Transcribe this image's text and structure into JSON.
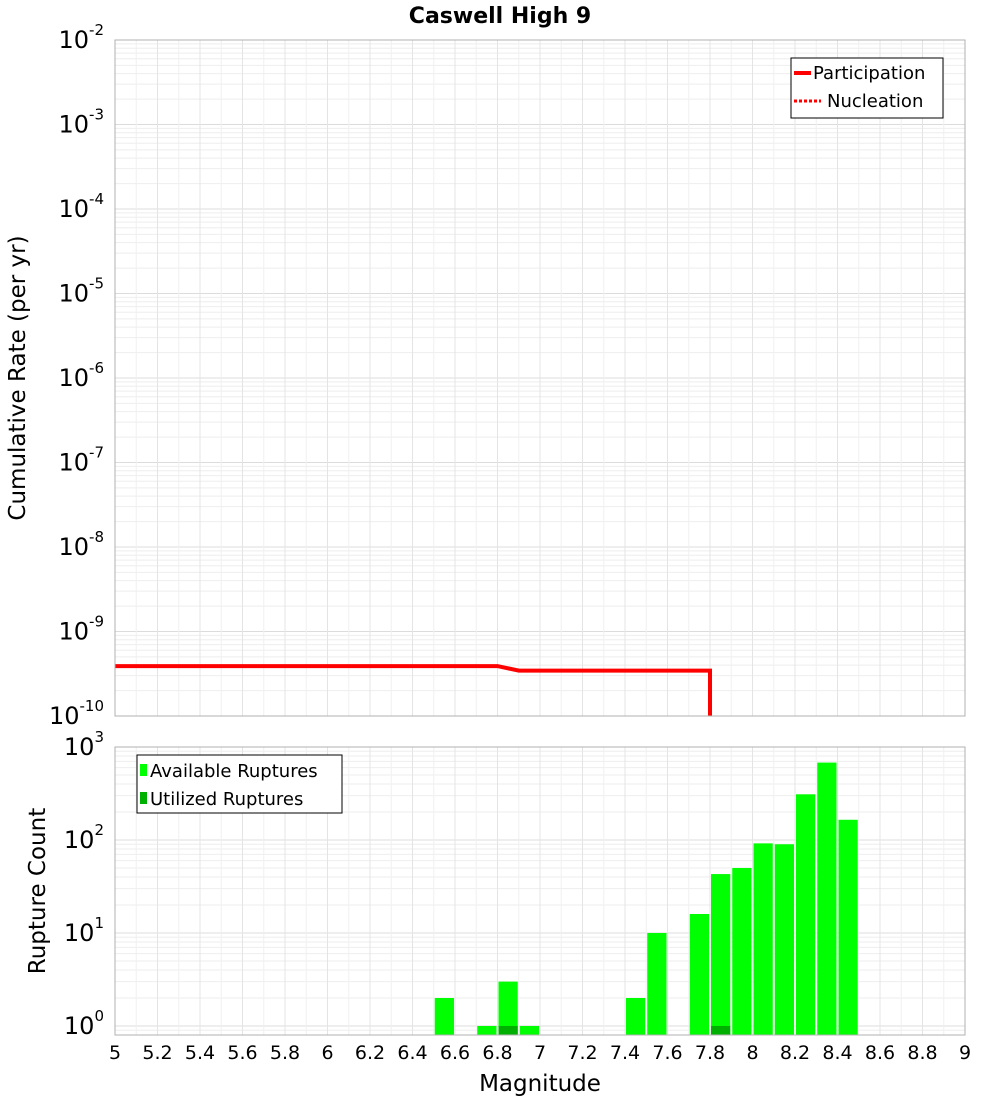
{
  "chart_data": [
    {
      "type": "line",
      "title": "Caswell High 9",
      "xlabel": "",
      "ylabel": "Cumulative Rate (per yr)",
      "yscale": "log",
      "xlim": [
        5,
        9
      ],
      "ylim": [
        1e-10,
        0.01
      ],
      "y_tick_labels": [
        {
          "base": "10",
          "exp": "-2"
        },
        {
          "base": "10",
          "exp": "-3"
        },
        {
          "base": "10",
          "exp": "-4"
        },
        {
          "base": "10",
          "exp": "-5"
        },
        {
          "base": "10",
          "exp": "-6"
        },
        {
          "base": "10",
          "exp": "-7"
        },
        {
          "base": "10",
          "exp": "-8"
        },
        {
          "base": "10",
          "exp": "-9"
        },
        {
          "base": "10",
          "exp": "-10"
        }
      ],
      "grid": true,
      "legend_position": "top-right",
      "series": [
        {
          "name": "Participation",
          "style": "solid",
          "color": "#ff0000",
          "x": [
            5.0,
            5.1,
            5.2,
            5.3,
            5.4,
            5.5,
            5.6,
            5.7,
            5.8,
            5.9,
            6.0,
            6.1,
            6.2,
            6.3,
            6.4,
            6.5,
            6.6,
            6.7,
            6.8,
            6.9,
            7.0,
            7.1,
            7.2,
            7.3,
            7.4,
            7.5,
            7.6,
            7.7,
            7.8,
            7.8
          ],
          "y": [
            3.9e-10,
            3.9e-10,
            3.9e-10,
            3.9e-10,
            3.9e-10,
            3.9e-10,
            3.9e-10,
            3.9e-10,
            3.9e-10,
            3.9e-10,
            3.9e-10,
            3.9e-10,
            3.9e-10,
            3.9e-10,
            3.9e-10,
            3.9e-10,
            3.9e-10,
            3.9e-10,
            3.9e-10,
            3.45e-10,
            3.45e-10,
            3.45e-10,
            3.45e-10,
            3.45e-10,
            3.45e-10,
            3.45e-10,
            3.45e-10,
            3.45e-10,
            3.45e-10,
            1e-10
          ]
        },
        {
          "name": "Nucleation",
          "style": "dotted",
          "color": "#ff0000",
          "x": [],
          "y": []
        }
      ]
    },
    {
      "type": "bar",
      "xlabel": "Magnitude",
      "ylabel": "Rupture Count",
      "yscale": "log",
      "xlim": [
        5,
        9
      ],
      "ylim": [
        0.8,
        1000
      ],
      "x_ticks": [
        "5",
        "5.2",
        "5.4",
        "5.6",
        "5.8",
        "6",
        "6.2",
        "6.4",
        "6.6",
        "6.8",
        "7",
        "7.2",
        "7.4",
        "7.6",
        "7.8",
        "8",
        "8.2",
        "8.4",
        "8.6",
        "8.8",
        "9"
      ],
      "y_tick_labels": [
        {
          "base": "10",
          "exp": "3"
        },
        {
          "base": "10",
          "exp": "2"
        },
        {
          "base": "10",
          "exp": "1"
        },
        {
          "base": "10",
          "exp": "0"
        }
      ],
      "grid": true,
      "legend_position": "top-left",
      "bin_width": 0.1,
      "series": [
        {
          "name": "Available Ruptures",
          "color": "#00ff00",
          "x": [
            6.55,
            6.75,
            6.85,
            6.95,
            7.45,
            7.55,
            7.75,
            7.85,
            7.95,
            8.05,
            8.15,
            8.25,
            8.35,
            8.45
          ],
          "values": [
            2,
            1,
            3,
            1,
            2,
            10,
            16,
            43,
            50,
            92,
            90,
            310,
            680,
            165
          ]
        },
        {
          "name": "Utilized Ruptures",
          "color": "#00b000",
          "x": [
            6.85,
            7.85
          ],
          "values": [
            1,
            1
          ]
        }
      ]
    }
  ]
}
